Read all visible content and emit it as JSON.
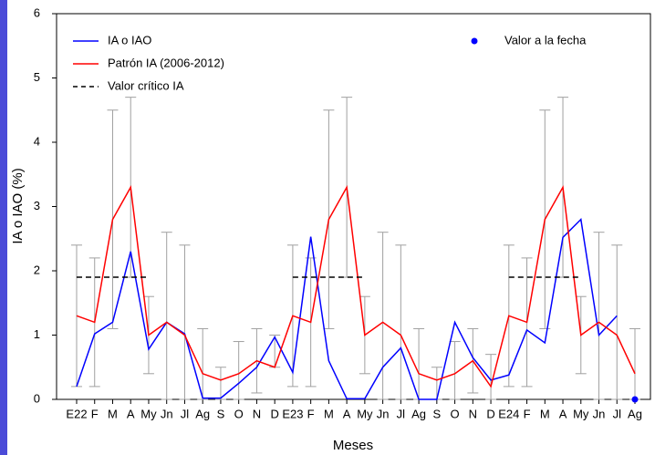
{
  "chart_data": {
    "type": "line",
    "x_label": "Meses",
    "y_label": "IA o IAO (%)",
    "categories": [
      "E22",
      "F",
      "M",
      "A",
      "My",
      "Jn",
      "Jl",
      "Ag",
      "S",
      "O",
      "N",
      "D",
      "E23",
      "F",
      "M",
      "A",
      "My",
      "Jn",
      "Jl",
      "Ag",
      "S",
      "O",
      "N",
      "D",
      "E24",
      "F",
      "M",
      "A",
      "My",
      "Jn",
      "Jl",
      "Ag"
    ],
    "ylim": [
      0,
      6
    ],
    "yticks": [
      0,
      1,
      2,
      3,
      4,
      5,
      6
    ],
    "series": [
      {
        "name": "IA o IAO",
        "color": "#0000ff",
        "values": [
          0.2,
          1.02,
          1.2,
          2.3,
          0.78,
          1.2,
          1.02,
          0.02,
          0.02,
          0.25,
          0.5,
          0.97,
          0.42,
          2.53,
          0.6,
          0.01,
          0.01,
          0.5,
          0.8,
          0,
          0,
          1.2,
          0.65,
          0.3,
          0.38,
          1.08,
          0.88,
          2.52,
          2.8,
          1.0,
          1.3,
          null
        ]
      },
      {
        "name": "Patrón IA (2006-2012)",
        "color": "#ff0000",
        "values": [
          1.3,
          1.2,
          2.8,
          3.3,
          1.0,
          1.2,
          1.0,
          0.4,
          0.3,
          0.4,
          0.6,
          0.5,
          1.3,
          1.2,
          2.8,
          3.3,
          1.0,
          1.2,
          1.0,
          0.4,
          0.3,
          0.4,
          0.6,
          0.2,
          1.3,
          1.2,
          2.8,
          3.3,
          1.0,
          1.2,
          1.0,
          0.4
        ],
        "error_color": "#a0a0a0",
        "error_low": [
          0.2,
          0.2,
          1.1,
          1.9,
          0.4,
          0,
          0,
          0,
          0,
          0,
          0.1,
          0.5,
          0.2,
          0.2,
          1.1,
          1.9,
          0.4,
          0,
          0,
          0,
          0,
          0,
          0.1,
          0,
          0.2,
          0.2,
          1.1,
          1.9,
          0.4,
          0,
          0,
          0
        ],
        "error_high": [
          2.4,
          2.2,
          4.5,
          4.7,
          1.6,
          2.6,
          2.4,
          1.1,
          0.5,
          0.9,
          1.1,
          1.0,
          2.4,
          2.2,
          4.5,
          4.7,
          1.6,
          2.6,
          2.4,
          1.1,
          0.5,
          0.9,
          1.1,
          0.7,
          2.4,
          2.2,
          4.5,
          4.7,
          1.6,
          2.6,
          2.4,
          1.1
        ]
      },
      {
        "name": "Valor crítico IA",
        "color": "#000000",
        "dashed": true,
        "values": [
          1.9,
          1.9,
          1.9,
          1.9,
          1.9,
          null,
          null,
          null,
          null,
          null,
          null,
          null,
          1.9,
          1.9,
          1.9,
          1.9,
          1.9,
          null,
          null,
          null,
          null,
          null,
          null,
          null,
          1.9,
          1.9,
          1.9,
          1.9,
          1.9,
          null,
          null,
          null
        ]
      },
      {
        "name": "Valor a la fecha",
        "color": "#0000ff",
        "marker": "dot",
        "values": [
          null,
          null,
          null,
          null,
          null,
          null,
          null,
          null,
          null,
          null,
          null,
          null,
          null,
          null,
          null,
          null,
          null,
          null,
          null,
          null,
          null,
          null,
          null,
          null,
          null,
          null,
          null,
          null,
          null,
          null,
          null,
          0
        ]
      }
    ]
  }
}
